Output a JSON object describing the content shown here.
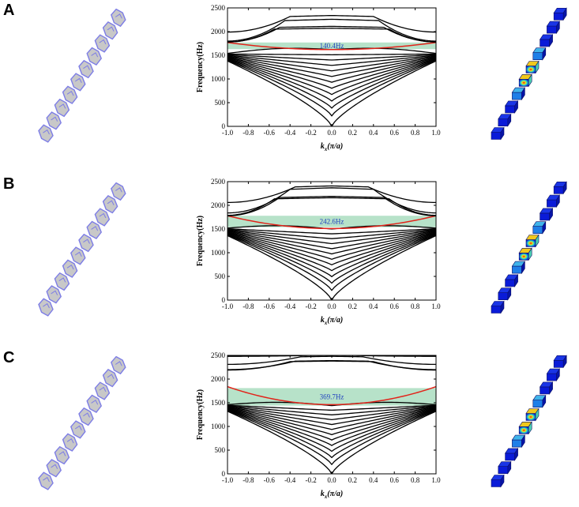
{
  "figure": {
    "colors": {
      "band": "#000000",
      "defect_band": "#e2231a",
      "gap_fill": "#b7e2c9",
      "gap_label": "#1f3fbf",
      "chain_face": "#c8c8c8",
      "chain_edge": "#7d7de6",
      "mode_base": "#0a1bd8",
      "mode_hot": "#e01414"
    },
    "panels": [
      {
        "letter": "A",
        "gap_label": "140.4Hz",
        "chart_data": {
          "type": "line",
          "xlabel_main": "k",
          "xlabel_sub": "x",
          "xlabel_rest": "(π/a)",
          "ylabel": "Frequency(Hz)",
          "xlim": [
            -1.0,
            1.0
          ],
          "ylim": [
            0,
            2500
          ],
          "xticks": [
            "-1.0",
            "-0.8",
            "-0.6",
            "-0.4",
            "-0.2",
            "0.0",
            "0.2",
            "0.4",
            "0.6",
            "0.8",
            "1.0"
          ],
          "yticks": [
            "0",
            "500",
            "1000",
            "1500",
            "2000",
            "2500"
          ],
          "band_gap": [
            1630,
            1770
          ],
          "defect_band": {
            "edge": 1770,
            "center": 1620
          },
          "lower_bands": {
            "count": 13,
            "edge_min": 1380,
            "edge_max": 1540,
            "top_center": 1620,
            "lowest_center": 0
          },
          "upper_bands": [
            {
              "edge": 1780,
              "center": 2110,
              "plateau": 0.5
            },
            {
              "edge": 1800,
              "center": 2260,
              "plateau": 0.45
            },
            {
              "edge": 1990,
              "center": 2340,
              "plateau": 0.4
            },
            {
              "edge": 1780,
              "center": 2070,
              "plateau": 0.55
            }
          ]
        }
      },
      {
        "letter": "B",
        "gap_label": "242.6Hz",
        "chart_data": {
          "type": "line",
          "xlabel_main": "k",
          "xlabel_sub": "x",
          "xlabel_rest": "(π/a)",
          "ylabel": "Frequency(Hz)",
          "xlim": [
            -1.0,
            1.0
          ],
          "ylim": [
            0,
            2500
          ],
          "xticks": [
            "-1.0",
            "-0.8",
            "-0.6",
            "-0.4",
            "-0.2",
            "0.0",
            "0.2",
            "0.4",
            "0.6",
            "0.8",
            "1.0"
          ],
          "yticks": [
            "0",
            "500",
            "1000",
            "1500",
            "2000",
            "2500"
          ],
          "band_gap": [
            1540,
            1780
          ],
          "defect_band": {
            "edge": 1780,
            "center": 1510
          },
          "lower_bands": {
            "count": 13,
            "edge_min": 1360,
            "edge_max": 1520,
            "top_center": 1500,
            "lowest_center": 0
          },
          "upper_bands": [
            {
              "edge": 1780,
              "center": 2190,
              "plateau": 0.5
            },
            {
              "edge": 1840,
              "center": 2370,
              "plateau": 0.4
            },
            {
              "edge": 2060,
              "center": 2410,
              "plateau": 0.35
            },
            {
              "edge": 1790,
              "center": 2160,
              "plateau": 0.55
            }
          ]
        }
      },
      {
        "letter": "C",
        "gap_label": "369.7Hz",
        "chart_data": {
          "type": "line",
          "xlabel_main": "k",
          "xlabel_sub": "x",
          "xlabel_rest": "(π/a)",
          "ylabel": "Frequency(Hz)",
          "xlim": [
            -1.0,
            1.0
          ],
          "ylim": [
            0,
            2500
          ],
          "xticks": [
            "-1.0",
            "-0.8",
            "-0.6",
            "-0.4",
            "-0.2",
            "0.0",
            "0.2",
            "0.4",
            "0.6",
            "0.8",
            "1.0"
          ],
          "yticks": [
            "0",
            "500",
            "1000",
            "1500",
            "2000",
            "2500"
          ],
          "band_gap": [
            1440,
            1810
          ],
          "defect_band": {
            "edge": 1840,
            "center": 1460
          },
          "lower_bands": {
            "count": 13,
            "edge_min": 1320,
            "edge_max": 1460,
            "top_center": 1440,
            "lowest_center": 0
          },
          "upper_bands": [
            {
              "edge": 2200,
              "center": 2390,
              "plateau": 0.35
            },
            {
              "edge": 2310,
              "center": 2480,
              "plateau": 0.3
            },
            {
              "edge": 2480,
              "center": 2500,
              "plateau": 0.2
            },
            {
              "edge": 2190,
              "center": 2380,
              "plateau": 0.4
            }
          ]
        }
      }
    ]
  }
}
